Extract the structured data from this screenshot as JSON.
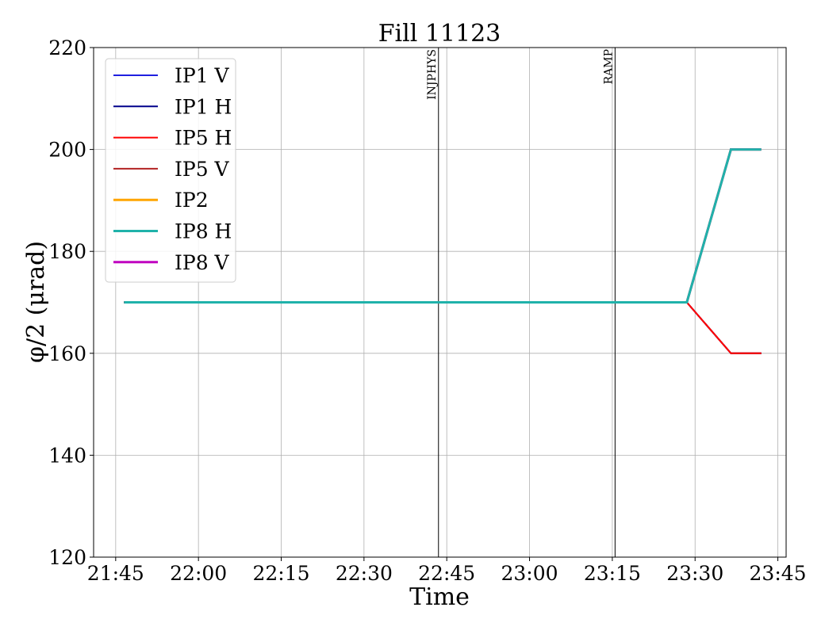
{
  "chart_data": {
    "type": "line",
    "title": "Fill 11123",
    "xlabel": "Time",
    "ylabel": "φ/2 (μrad)",
    "x_ticks": [
      "21:45",
      "22:00",
      "22:15",
      "22:30",
      "22:45",
      "23:00",
      "23:15",
      "23:30",
      "23:45"
    ],
    "x_tick_minutes": [
      0,
      15,
      30,
      45,
      60,
      75,
      90,
      105,
      120
    ],
    "xlim_minutes": [
      -4,
      121.5
    ],
    "y_ticks": [
      120,
      140,
      160,
      180,
      200,
      220
    ],
    "ylim": [
      120,
      220
    ],
    "grid": true,
    "legend_position": "upper-left",
    "vlines": [
      {
        "label": "INJPHYS",
        "x_minutes": 58.5
      },
      {
        "label": "RAMP",
        "x_minutes": 90.5
      }
    ],
    "series": [
      {
        "name": "IP1 V",
        "color": "#1f1fe0",
        "width": 2,
        "x_minutes": [
          1.5,
          103.5,
          111.5,
          117
        ],
        "values": [
          170,
          170,
          160,
          160
        ]
      },
      {
        "name": "IP1 H",
        "color": "#00008b",
        "width": 2,
        "x_minutes": [
          1.5,
          103.5,
          111.5,
          117
        ],
        "values": [
          170,
          170,
          160,
          160
        ]
      },
      {
        "name": "IP5 H",
        "color": "#ff0000",
        "width": 2,
        "x_minutes": [
          1.5,
          103.5,
          111.5,
          117
        ],
        "values": [
          170,
          170,
          160,
          160
        ]
      },
      {
        "name": "IP5 V",
        "color": "#b22222",
        "width": 2,
        "x_minutes": [
          1.5,
          103.5,
          111.5,
          117
        ],
        "values": [
          170,
          170,
          160,
          160
        ]
      },
      {
        "name": "IP2",
        "color": "#ffa500",
        "width": 3,
        "x_minutes": [
          1.5,
          103.5,
          111.5,
          117
        ],
        "values": [
          170,
          170,
          200,
          200
        ]
      },
      {
        "name": "IP8 H",
        "color": "#20b2aa",
        "width": 3,
        "x_minutes": [
          1.5,
          103.5,
          111.5,
          117
        ],
        "values": [
          170,
          170,
          200,
          200
        ]
      },
      {
        "name": "IP8 V",
        "color": "#c000c0",
        "width": 3,
        "x_minutes": [
          1.5,
          103.5,
          111.5,
          117
        ],
        "values": [
          170,
          170,
          200,
          200
        ]
      }
    ],
    "draw_order": [
      "IP2",
      "IP8 V",
      "IP1 V",
      "IP1 H",
      "IP5 V",
      "IP5 H",
      "IP8 H"
    ]
  }
}
